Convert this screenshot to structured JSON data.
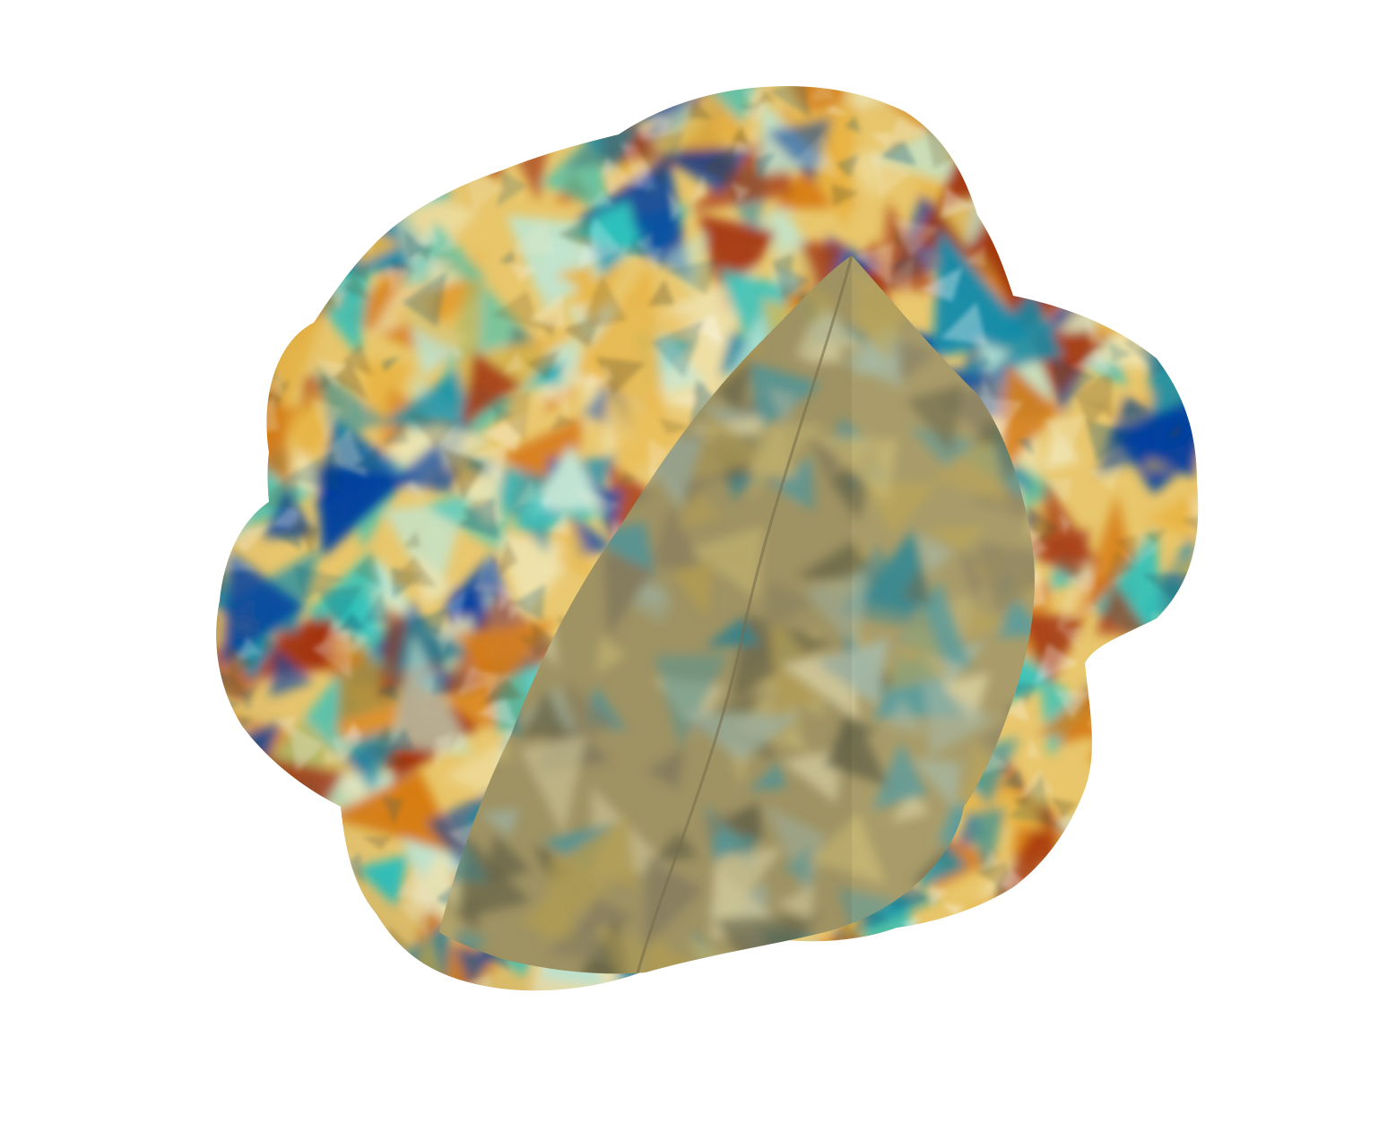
{
  "scene": {
    "background": "#ffffff",
    "object": "cutaway-blob-surface",
    "colormap": {
      "name": "diverging-teal-orange",
      "stops": [
        "#003f9e",
        "#0e89a8",
        "#2cc1bb",
        "#bfe5d2",
        "#efe4b0",
        "#e8b441",
        "#d67a12",
        "#a3340e"
      ]
    },
    "cut_face_color": "#a99c6a",
    "lighting": "shaded"
  }
}
